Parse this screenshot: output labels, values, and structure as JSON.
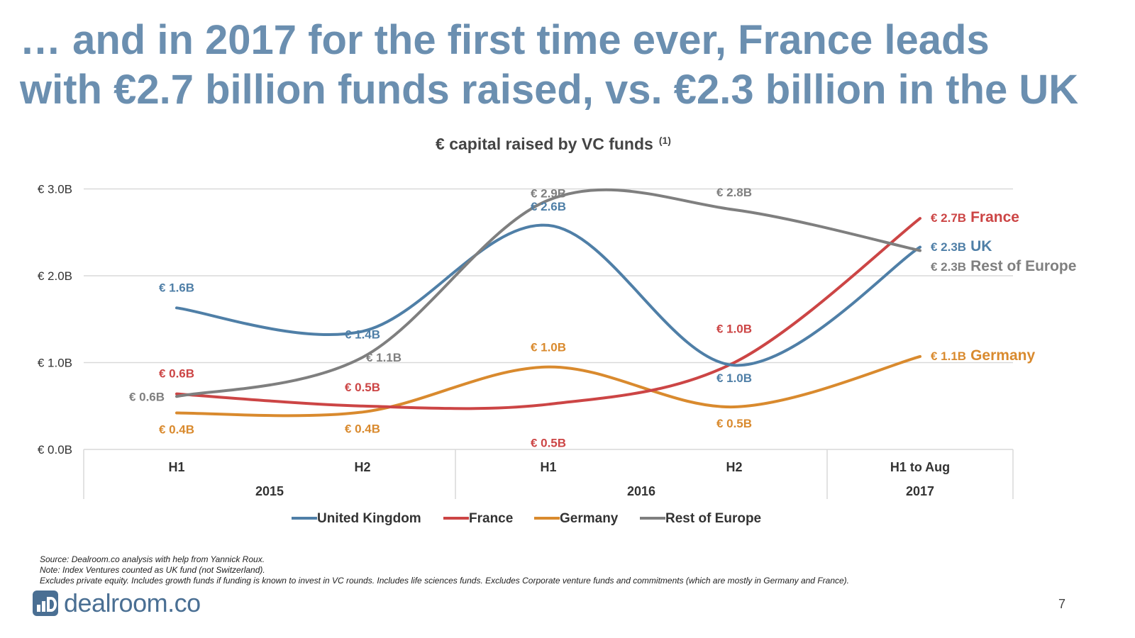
{
  "slide": {
    "title_line1": "… and in 2017 for the first time ever, France leads",
    "title_line2": "with €2.7 billion funds raised, vs. €2.3 billion in the UK",
    "page_number": "7",
    "logo_text": "dealroom.co",
    "notes": [
      "Source: Dealroom.co analysis with help from Yannick Roux.",
      "Note: Index Ventures counted as UK fund (not Switzerland).",
      "Excludes private equity. Includes growth funds if funding is known to invest in VC rounds.  Includes life sciences funds. Excludes Corporate venture funds and commitments (which are mostly in Germany and France)."
    ]
  },
  "chart_data": {
    "type": "line",
    "title": "€ capital raised by VC funds",
    "title_superscript": "(1)",
    "categories": [
      "H1",
      "H2",
      "H1",
      "H2",
      "H1 to Aug"
    ],
    "category_groups": [
      {
        "label": "2015",
        "span": 2
      },
      {
        "label": "2016",
        "span": 2
      },
      {
        "label": "2017",
        "span": 1
      }
    ],
    "y_ticks": [
      "€ 0.0B",
      "€ 1.0B",
      "€ 2.0B",
      "€ 3.0B"
    ],
    "ylim": [
      0,
      3
    ],
    "grid": true,
    "legend_position": "bottom",
    "series": [
      {
        "name": "United Kingdom",
        "end_label": "UK",
        "color": "#4f7fa7",
        "values": [
          1.63,
          1.36,
          2.58,
          0.97,
          2.33
        ],
        "labels": [
          "€ 1.6B",
          "€ 1.4B",
          "€ 2.6B",
          "€ 1.0B",
          "€ 2.3B"
        ]
      },
      {
        "name": "France",
        "end_label": "France",
        "color": "#cc4545",
        "values": [
          0.64,
          0.5,
          0.52,
          1.0,
          2.66
        ],
        "labels": [
          "€ 0.6B",
          "€ 0.5B",
          "€ 0.5B",
          "€ 1.0B",
          "€ 2.7B"
        ]
      },
      {
        "name": "Germany",
        "end_label": "Germany",
        "color": "#d98a2e",
        "values": [
          0.42,
          0.43,
          0.95,
          0.49,
          1.07
        ],
        "labels": [
          "€ 0.4B",
          "€ 0.4B",
          "€ 1.0B",
          "€ 0.5B",
          "€ 1.1B"
        ]
      },
      {
        "name": "Rest of Europe",
        "end_label": "Rest of Europe",
        "color": "#7f7f7f",
        "values": [
          0.61,
          1.06,
          2.87,
          2.76,
          2.29
        ],
        "labels": [
          "€ 0.6B",
          "€ 1.1B",
          "€ 2.9B",
          "€ 2.8B",
          "€ 2.3B"
        ]
      }
    ]
  }
}
